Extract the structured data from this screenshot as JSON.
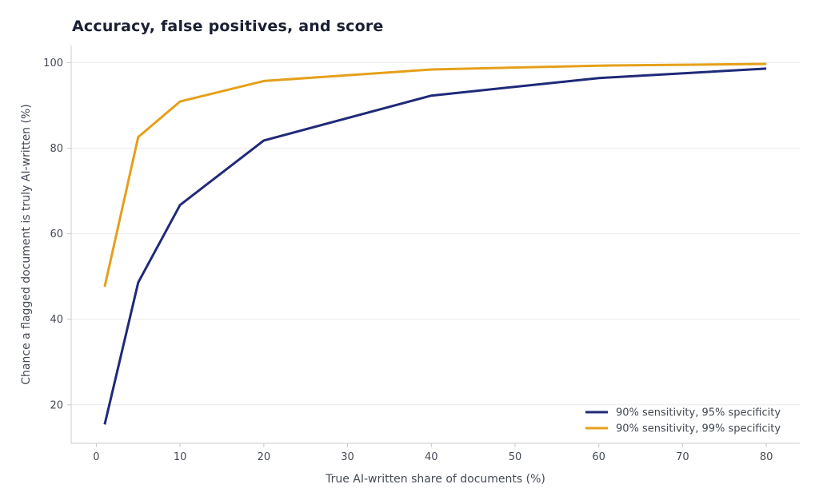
{
  "chart_data": {
    "type": "line",
    "title": "Accuracy, false positives, and score",
    "xlabel": "True AI-written share of documents (%)",
    "ylabel": "Chance a flagged document is truly AI-written (%)",
    "xlim": [
      -3,
      84
    ],
    "ylim": [
      11,
      104
    ],
    "xticks": [
      0,
      10,
      20,
      30,
      40,
      50,
      60,
      70,
      80
    ],
    "yticks": [
      20,
      40,
      60,
      80,
      100
    ],
    "grid": "horizontal",
    "legend_position": "bottom-right",
    "x": [
      1,
      5,
      10,
      20,
      40,
      60,
      80
    ],
    "series": [
      {
        "name": "90% sensitivity, 95% specificity",
        "color": "#1f2a78",
        "values": [
          15.4,
          48.6,
          66.7,
          81.8,
          92.3,
          96.4,
          98.6
        ]
      },
      {
        "name": "90% sensitivity, 99% specificity",
        "color": "#e5a01a",
        "values": [
          47.6,
          82.6,
          90.9,
          95.7,
          98.4,
          99.3,
          99.7
        ]
      }
    ]
  }
}
